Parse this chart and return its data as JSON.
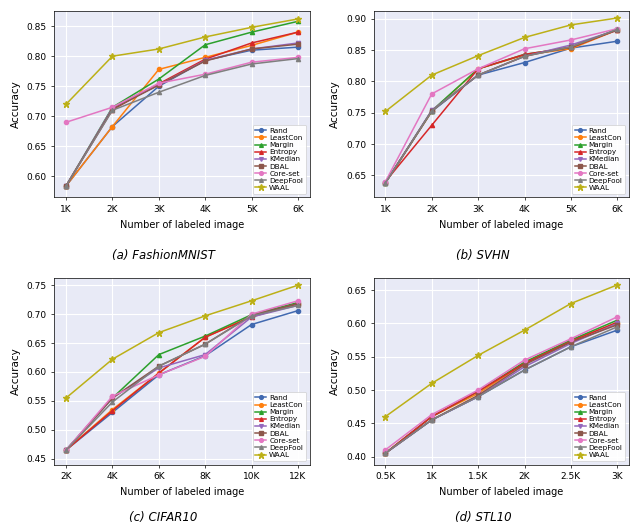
{
  "background_color": "#e8eaf6",
  "methods": [
    "Rand",
    "LeastCon",
    "Margin",
    "Entropy",
    "KMedian",
    "DBAL",
    "Core-set",
    "DeepFool",
    "WAAL"
  ],
  "colors": [
    "#4169b0",
    "#ff7f0e",
    "#2ca02c",
    "#d62728",
    "#9467bd",
    "#8c564b",
    "#e377c2",
    "#7f7f7f",
    "#bcb017"
  ],
  "markers": [
    "o",
    "o",
    "^",
    "^",
    "v",
    "s",
    "o",
    "^",
    "*"
  ],
  "markersizes": [
    3,
    3,
    3,
    3,
    3,
    3,
    3,
    3,
    5
  ],
  "linewidth": 1.1,
  "subplots": [
    {
      "title": "(a) FashionMNIST",
      "xlabel": "Number of labeled image",
      "ylabel": "Accuracy",
      "ylim": [
        0.565,
        0.875
      ],
      "yticks": [
        0.6,
        0.65,
        0.7,
        0.75,
        0.8,
        0.85
      ],
      "xtick_labels": [
        "1K",
        "2K",
        "3K",
        "4K",
        "5K",
        "6K"
      ],
      "xtick_vals": [
        1000,
        2000,
        3000,
        4000,
        5000,
        6000
      ],
      "legend_loc": "lower right",
      "data": {
        "Rand": [
          0.584,
          0.683,
          0.75,
          0.793,
          0.81,
          0.815
        ],
        "LeastCon": [
          0.584,
          0.683,
          0.778,
          0.798,
          0.818,
          0.84
        ],
        "Margin": [
          0.584,
          0.715,
          0.762,
          0.819,
          0.84,
          0.858
        ],
        "Entropy": [
          0.584,
          0.711,
          0.754,
          0.795,
          0.822,
          0.84
        ],
        "KMedian": [
          0.584,
          0.714,
          0.752,
          0.793,
          0.812,
          0.822
        ],
        "DBAL": [
          0.584,
          0.712,
          0.752,
          0.792,
          0.812,
          0.82
        ],
        "Core-set": [
          0.69,
          0.715,
          0.755,
          0.77,
          0.79,
          0.798
        ],
        "DeepFool": [
          0.584,
          0.71,
          0.74,
          0.768,
          0.787,
          0.796
        ],
        "WAAL": [
          0.72,
          0.8,
          0.812,
          0.832,
          0.848,
          0.862
        ]
      }
    },
    {
      "title": "(b) SVHN",
      "xlabel": "Number of labeled image",
      "ylabel": "Accuracy",
      "ylim": [
        0.615,
        0.912
      ],
      "yticks": [
        0.65,
        0.7,
        0.75,
        0.8,
        0.85,
        0.9
      ],
      "xtick_labels": [
        "1K",
        "2K",
        "3K",
        "4K",
        "5K",
        "6K"
      ],
      "xtick_vals": [
        1000,
        2000,
        3000,
        4000,
        5000,
        6000
      ],
      "legend_loc": "lower right",
      "data": {
        "Rand": [
          0.638,
          0.752,
          0.81,
          0.83,
          0.853,
          0.864
        ],
        "LeastCon": [
          0.638,
          0.752,
          0.82,
          0.842,
          0.852,
          0.882
        ],
        "Margin": [
          0.638,
          0.753,
          0.82,
          0.843,
          0.854,
          0.883
        ],
        "Entropy": [
          0.64,
          0.73,
          0.82,
          0.843,
          0.854,
          0.882
        ],
        "KMedian": [
          0.638,
          0.754,
          0.81,
          0.84,
          0.858,
          0.882
        ],
        "DBAL": [
          0.638,
          0.753,
          0.81,
          0.84,
          0.855,
          0.882
        ],
        "Core-set": [
          0.64,
          0.78,
          0.82,
          0.852,
          0.866,
          0.884
        ],
        "DeepFool": [
          0.638,
          0.753,
          0.81,
          0.84,
          0.855,
          0.883
        ],
        "WAAL": [
          0.752,
          0.81,
          0.841,
          0.87,
          0.89,
          0.901
        ]
      }
    },
    {
      "title": "(c) CIFAR10",
      "xlabel": "Number of labeled image",
      "ylabel": "Accuracy",
      "ylim": [
        0.44,
        0.762
      ],
      "yticks": [
        0.45,
        0.5,
        0.55,
        0.6,
        0.65,
        0.7,
        0.75
      ],
      "xtick_labels": [
        "2K",
        "4K",
        "6K",
        "8K",
        "10K",
        "12K"
      ],
      "xtick_vals": [
        2000,
        4000,
        6000,
        8000,
        10000,
        12000
      ],
      "legend_loc": "lower right",
      "data": {
        "Rand": [
          0.465,
          0.53,
          0.595,
          0.628,
          0.682,
          0.706
        ],
        "LeastCon": [
          0.465,
          0.535,
          0.598,
          0.66,
          0.696,
          0.718
        ],
        "Margin": [
          0.465,
          0.555,
          0.63,
          0.662,
          0.699,
          0.72
        ],
        "Entropy": [
          0.465,
          0.533,
          0.598,
          0.66,
          0.695,
          0.718
        ],
        "KMedian": [
          0.465,
          0.555,
          0.607,
          0.63,
          0.695,
          0.715
        ],
        "DBAL": [
          0.465,
          0.555,
          0.61,
          0.648,
          0.698,
          0.718
        ],
        "Core-set": [
          0.465,
          0.558,
          0.595,
          0.627,
          0.7,
          0.723
        ],
        "DeepFool": [
          0.465,
          0.548,
          0.61,
          0.648,
          0.697,
          0.715
        ],
        "WAAL": [
          0.555,
          0.622,
          0.668,
          0.697,
          0.723,
          0.75
        ]
      }
    },
    {
      "title": "(d) STL10",
      "xlabel": "Number of labeled image",
      "ylabel": "Accuracy",
      "ylim": [
        0.388,
        0.668
      ],
      "yticks": [
        0.4,
        0.45,
        0.5,
        0.55,
        0.6,
        0.65
      ],
      "xtick_labels": [
        "0.5K",
        "1K",
        "1.5K",
        "2K",
        "2.5K",
        "3K"
      ],
      "xtick_vals": [
        500,
        1000,
        1500,
        2000,
        2500,
        3000
      ],
      "legend_loc": "lower right",
      "data": {
        "Rand": [
          0.405,
          0.455,
          0.49,
          0.53,
          0.565,
          0.59
        ],
        "LeastCon": [
          0.405,
          0.46,
          0.495,
          0.54,
          0.575,
          0.6
        ],
        "Margin": [
          0.405,
          0.46,
          0.498,
          0.542,
          0.575,
          0.605
        ],
        "Entropy": [
          0.405,
          0.46,
          0.498,
          0.54,
          0.573,
          0.602
        ],
        "KMedian": [
          0.405,
          0.455,
          0.49,
          0.535,
          0.57,
          0.6
        ],
        "DBAL": [
          0.405,
          0.455,
          0.492,
          0.538,
          0.572,
          0.598
        ],
        "Core-set": [
          0.41,
          0.463,
          0.5,
          0.545,
          0.577,
          0.61
        ],
        "DeepFool": [
          0.405,
          0.455,
          0.49,
          0.53,
          0.565,
          0.595
        ],
        "WAAL": [
          0.46,
          0.51,
          0.552,
          0.59,
          0.63,
          0.658
        ]
      }
    }
  ]
}
